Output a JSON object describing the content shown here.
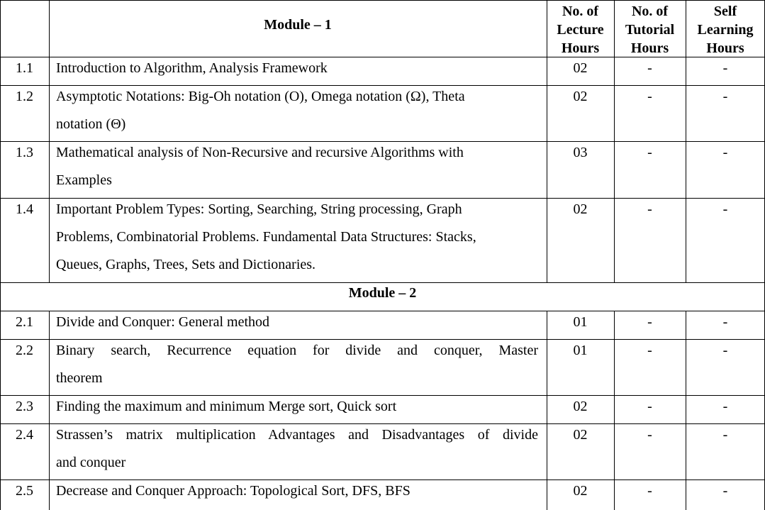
{
  "header": {
    "module_title": "Module – 1",
    "col_lecture": [
      "No. of",
      "Lecture",
      "Hours"
    ],
    "col_tutorial": [
      "No. of",
      "Tutorial",
      "Hours"
    ],
    "col_self": [
      "Self",
      "Learning",
      "Hours"
    ]
  },
  "module2_title": "Module – 2",
  "rows": [
    {
      "num": "1.1",
      "lines": [
        "Introduction to Algorithm, Analysis Framework"
      ],
      "lecture": "02",
      "tutorial": "-",
      "self": "-"
    },
    {
      "num": "1.2",
      "lines": [
        "Asymptotic Notations: Big-Oh notation (O), Omega notation (Ω), Theta",
        "notation (Θ)"
      ],
      "lecture": "02",
      "tutorial": "-",
      "self": "-"
    },
    {
      "num": "1.3",
      "lines": [
        "Mathematical analysis of Non-Recursive and recursive Algorithms with",
        "Examples"
      ],
      "lecture": "03",
      "tutorial": "-",
      "self": "-"
    },
    {
      "num": "1.4",
      "lines": [
        "Important Problem Types: Sorting, Searching, String processing, Graph",
        "Problems, Combinatorial Problems. Fundamental Data Structures: Stacks,",
        "Queues, Graphs, Trees, Sets and Dictionaries."
      ],
      "lecture": "02",
      "tutorial": "-",
      "self": "-"
    },
    {
      "num": "2.1",
      "lines": [
        "Divide and Conquer: General method"
      ],
      "lecture": "01",
      "tutorial": "-",
      "self": "-"
    },
    {
      "num": "2.2",
      "lines": [
        "Binary search, Recurrence equation for divide and conquer, Master",
        "theorem"
      ],
      "lecture": "01",
      "tutorial": "-",
      "self": "-"
    },
    {
      "num": "2.3",
      "lines": [
        "Finding the maximum and minimum Merge sort, Quick sort"
      ],
      "lecture": "02",
      "tutorial": "-",
      "self": "-"
    },
    {
      "num": "2.4",
      "lines": [
        "Strassen’s matrix multiplication Advantages and Disadvantages of divide",
        "and conquer"
      ],
      "lecture": "02",
      "tutorial": "-",
      "self": "-"
    },
    {
      "num": "2.5",
      "lines": [
        "Decrease and Conquer Approach: Topological Sort, DFS, BFS"
      ],
      "lecture": "02",
      "tutorial": "-",
      "self": "-"
    }
  ]
}
